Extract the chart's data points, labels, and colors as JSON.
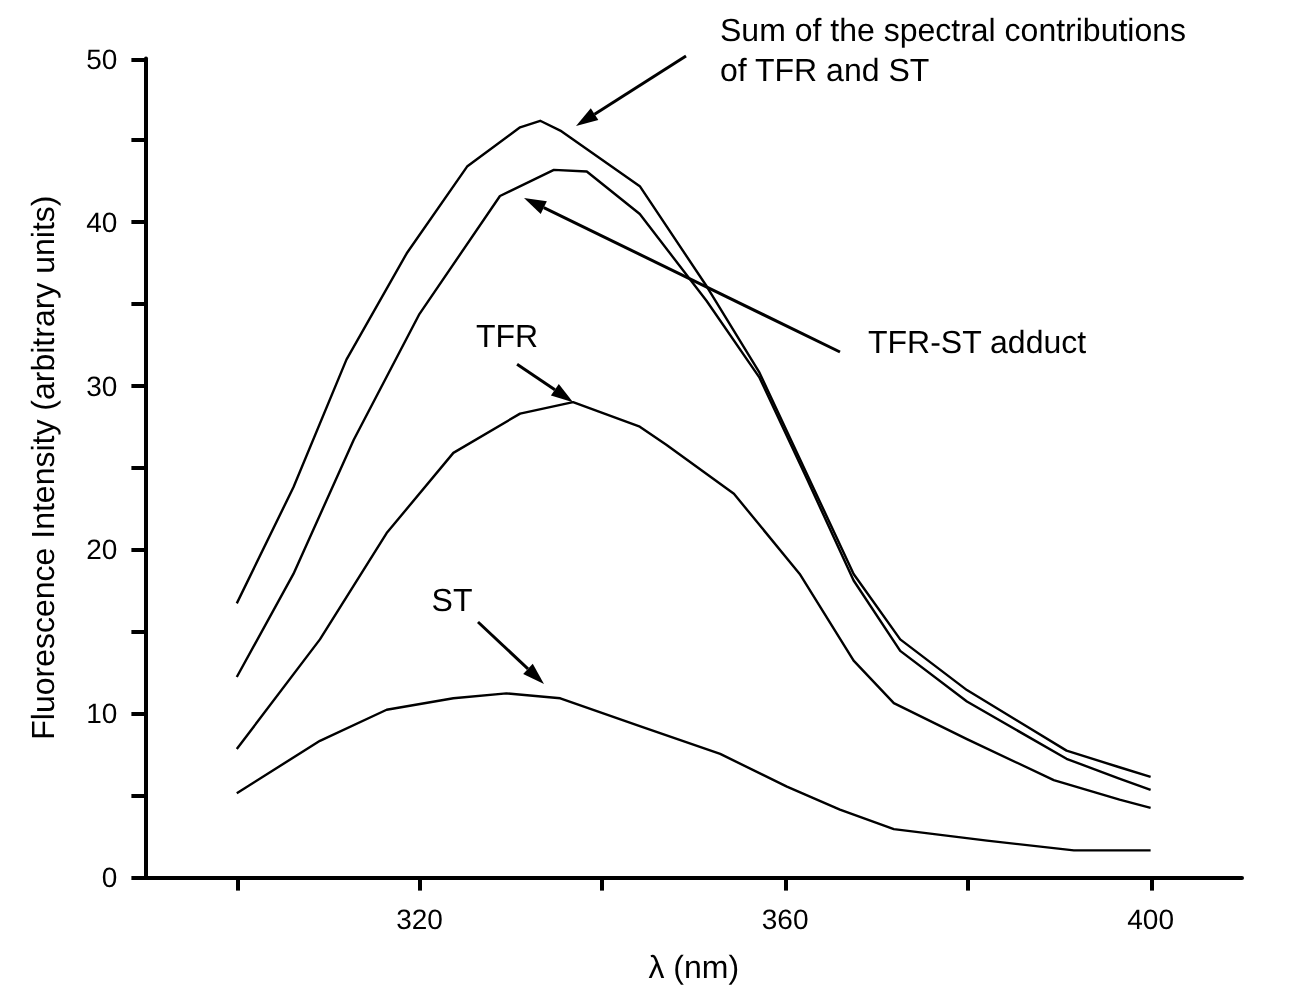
{
  "chart_data": {
    "type": "line",
    "xlabel": "λ (nm)",
    "ylabel": "Fluorescence Intensity (arbitrary units)",
    "xlim": [
      290,
      410
    ],
    "xticks": [
      {
        "value": 300,
        "label": null
      },
      320,
      {
        "value": 340,
        "label": null
      },
      360,
      {
        "value": 380,
        "label": null
      },
      400
    ],
    "ylim": [
      0,
      50
    ],
    "yticks": [
      0,
      {
        "value": 5,
        "label": null
      },
      10,
      {
        "value": 15,
        "label": null
      },
      20,
      {
        "value": 25,
        "label": null
      },
      30,
      {
        "value": 35,
        "label": null
      },
      40,
      {
        "value": 45,
        "label": null
      },
      50
    ],
    "grid": false,
    "marker": "none",
    "line_style": "solid",
    "series": [
      {
        "color": "#000000",
        "x": [
          300,
          306.2,
          312,
          318.6,
          325.2,
          331,
          333.2,
          335.4,
          344.1,
          351.4,
          357.2,
          362.4,
          367.5,
          372.6,
          379.9,
          390.8,
          396.5,
          400
        ],
        "values": [
          16.7,
          23.8,
          31.6,
          38.1,
          43.4,
          45.8,
          46.2,
          45.6,
          42.2,
          36.1,
          30.8,
          24.6,
          18.5,
          14.5,
          11.4,
          7.7,
          6.7,
          6.1
        ]
      },
      {
        "color": "#000000",
        "x": [
          300,
          306.2,
          312.8,
          320,
          328.8,
          334.7,
          338.3,
          344.1,
          351.4,
          357.2,
          362.4,
          367.5,
          372.6,
          379.9,
          390.8,
          396.5,
          400
        ],
        "values": [
          12.2,
          18.5,
          26.7,
          34.4,
          41.6,
          43.2,
          43.1,
          40.5,
          35.2,
          30.5,
          24.3,
          18.1,
          13.8,
          10.7,
          7.2,
          6.0,
          5.3
        ]
      },
      {
        "color": "#000000",
        "x": [
          300,
          309.1,
          316.4,
          323.7,
          331,
          336.8,
          344.1,
          347,
          354.4,
          361.6,
          367.5,
          371.9,
          379.9,
          389.4,
          396.6,
          400
        ],
        "values": [
          7.8,
          14.5,
          21.0,
          25.9,
          28.3,
          29.0,
          27.5,
          26.4,
          23.4,
          18.5,
          13.2,
          10.6,
          8.4,
          5.9,
          4.7,
          4.2
        ]
      },
      {
        "color": "#000000",
        "x": [
          300,
          309.1,
          316.4,
          323.7,
          329.5,
          335.4,
          344.1,
          352.9,
          360.2,
          366,
          371.9,
          382.1,
          391.6,
          400
        ],
        "values": [
          5.1,
          8.3,
          10.2,
          10.9,
          11.2,
          10.9,
          9.2,
          7.5,
          5.5,
          4.1,
          2.9,
          2.2,
          1.6,
          1.6
        ]
      }
    ],
    "annotations": [
      "Sum of the spectral contributions\nof TFR and ST",
      "TFR-ST adduct",
      {
        "text": "TFR",
        "x": 336.8,
        "y": 29.0
      },
      "ST"
    ]
  }
}
